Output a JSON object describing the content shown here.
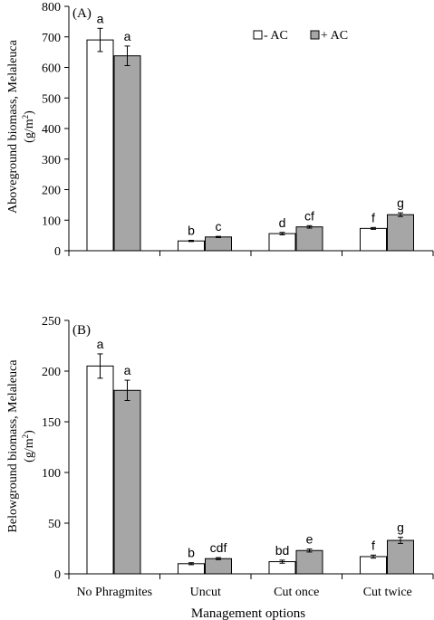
{
  "chart_data": [
    {
      "type": "bar",
      "panel_label": "(A)",
      "ylabel_line1": "Aboveground biomass, Melaleuca",
      "ylabel_unit_base": "(g/m",
      "ylabel_unit_sup": "2",
      "ylabel_unit_end": ")",
      "ylim": [
        0,
        800
      ],
      "yticks": [
        "0",
        "100",
        "200",
        "300",
        "400",
        "500",
        "600",
        "700",
        "800"
      ],
      "tick_values": [
        0,
        100,
        200,
        300,
        400,
        500,
        600,
        700,
        800
      ],
      "categories": [
        "No Phragmites",
        "Uncut",
        "Cut once",
        "Cut twice"
      ],
      "series": [
        {
          "name": "- AC",
          "values": [
            690,
            32,
            56,
            73
          ],
          "errors": [
            38,
            2,
            4,
            3
          ],
          "letters": [
            "a",
            "b",
            "d",
            "f"
          ]
        },
        {
          "name": "+ AC",
          "values": [
            638,
            45,
            78,
            118
          ],
          "errors": [
            32,
            2,
            4,
            6
          ],
          "letters": [
            "a",
            "c",
            "cf",
            "g"
          ]
        }
      ],
      "legend_position": "top-right"
    },
    {
      "type": "bar",
      "panel_label": "(B)",
      "ylabel_line1": "Belowground biomass, Melaleuca",
      "ylabel_unit_base": "(g/m",
      "ylabel_unit_sup": "2",
      "ylabel_unit_end": ")",
      "ylim": [
        0,
        250
      ],
      "yticks": [
        "0",
        "50",
        "100",
        "150",
        "200",
        "250"
      ],
      "tick_values": [
        0,
        50,
        100,
        150,
        200,
        250
      ],
      "categories": [
        "No Phragmites",
        "Uncut",
        "Cut once",
        "Cut twice"
      ],
      "series": [
        {
          "name": "- AC",
          "values": [
            205,
            10,
            12,
            17
          ],
          "errors": [
            12,
            1,
            1.5,
            1.5
          ],
          "letters": [
            "a",
            "b",
            "bd",
            "f"
          ]
        },
        {
          "name": "+ AC",
          "values": [
            181,
            15,
            23,
            33
          ],
          "errors": [
            10,
            1,
            1.5,
            3
          ],
          "letters": [
            "a",
            "cdf",
            "e",
            "g"
          ]
        }
      ],
      "xlabel": "Management options"
    }
  ],
  "colors": {
    "minus_ac": "#ffffff",
    "plus_ac": "#a6a6a6",
    "stroke": "#000000"
  }
}
